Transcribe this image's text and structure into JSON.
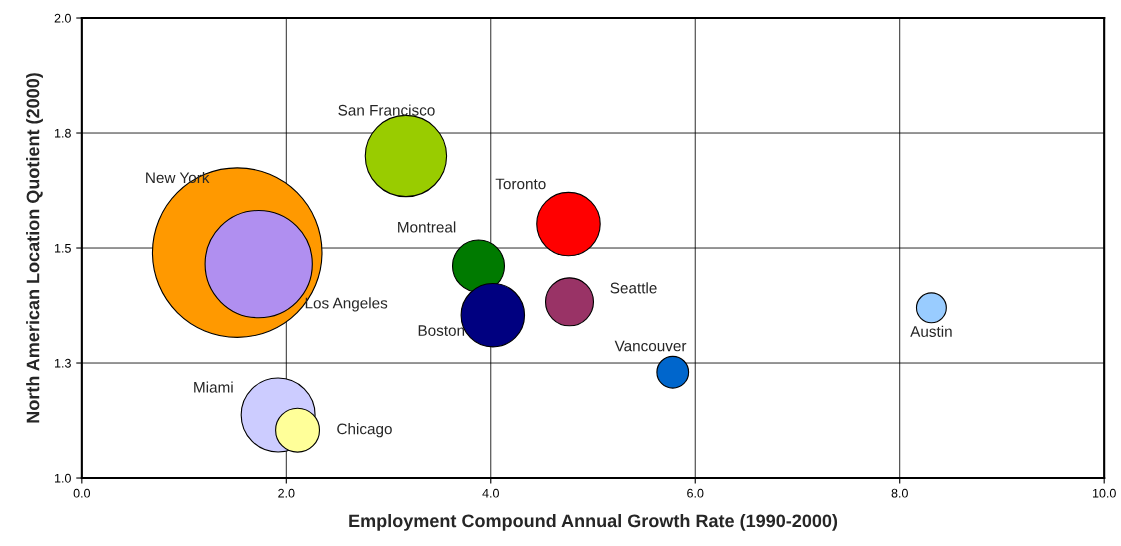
{
  "chart_data": {
    "type": "bubble",
    "xlabel": "Employment Compound Annual Growth Rate (1990-2000)",
    "ylabel": "North American Location Quotient (2000)",
    "xlim": [
      0,
      10
    ],
    "xticks": [
      {
        "value": 0,
        "label": "0.0"
      },
      {
        "value": 2,
        "label": "2.0"
      },
      {
        "value": 4,
        "label": "4.0"
      },
      {
        "value": 6,
        "label": "6.0"
      },
      {
        "value": 8,
        "label": "8.0"
      },
      {
        "value": 10,
        "label": "10.0"
      }
    ],
    "ylim": [
      1.0,
      2.0
    ],
    "yticks": [
      {
        "value": 1.0,
        "label": "1.0"
      },
      {
        "value": 1.25,
        "label": "1.3"
      },
      {
        "value": 1.5,
        "label": "1.5"
      },
      {
        "value": 1.75,
        "label": "1.8"
      },
      {
        "value": 2.0,
        "label": "2.0"
      }
    ],
    "grid": true,
    "legend": false,
    "series": [
      {
        "name": "New York",
        "color": "#ff9900",
        "x": [
          1.52
        ],
        "values": [
          1.49
        ],
        "sizes": [
          1.0
        ]
      },
      {
        "name": "Los Angeles",
        "color": "#b08ff0",
        "x": [
          1.73
        ],
        "values": [
          1.465
        ],
        "sizes": [
          0.4
        ]
      },
      {
        "name": "San Francisco",
        "color": "#99cc00",
        "x": [
          3.17
        ],
        "values": [
          1.7
        ],
        "sizes": [
          0.23
        ]
      },
      {
        "name": "Toronto",
        "color": "#ff0000",
        "x": [
          4.76
        ],
        "values": [
          1.552
        ],
        "sizes": [
          0.14
        ]
      },
      {
        "name": "Montreal",
        "color": "#007a00",
        "x": [
          3.88
        ],
        "values": [
          1.461
        ],
        "sizes": [
          0.094
        ]
      },
      {
        "name": "Boston",
        "color": "#000080",
        "x": [
          4.02
        ],
        "values": [
          1.354
        ],
        "sizes": [
          0.14
        ]
      },
      {
        "name": "Seattle",
        "color": "#993366",
        "x": [
          4.77
        ],
        "values": [
          1.383
        ],
        "sizes": [
          0.08
        ]
      },
      {
        "name": "Vancouver",
        "color": "#0066cc",
        "x": [
          5.78
        ],
        "values": [
          1.23
        ],
        "sizes": [
          0.035
        ]
      },
      {
        "name": "Austin",
        "color": "#99ccff",
        "x": [
          8.31
        ],
        "values": [
          1.37
        ],
        "sizes": [
          0.031
        ]
      },
      {
        "name": "Miami",
        "color": "#ccccff",
        "x": [
          1.92
        ],
        "values": [
          1.137
        ],
        "sizes": [
          0.19
        ]
      },
      {
        "name": "Chicago",
        "color": "#ffff99",
        "x": [
          2.11
        ],
        "values": [
          1.104
        ],
        "sizes": [
          0.067
        ]
      }
    ]
  }
}
